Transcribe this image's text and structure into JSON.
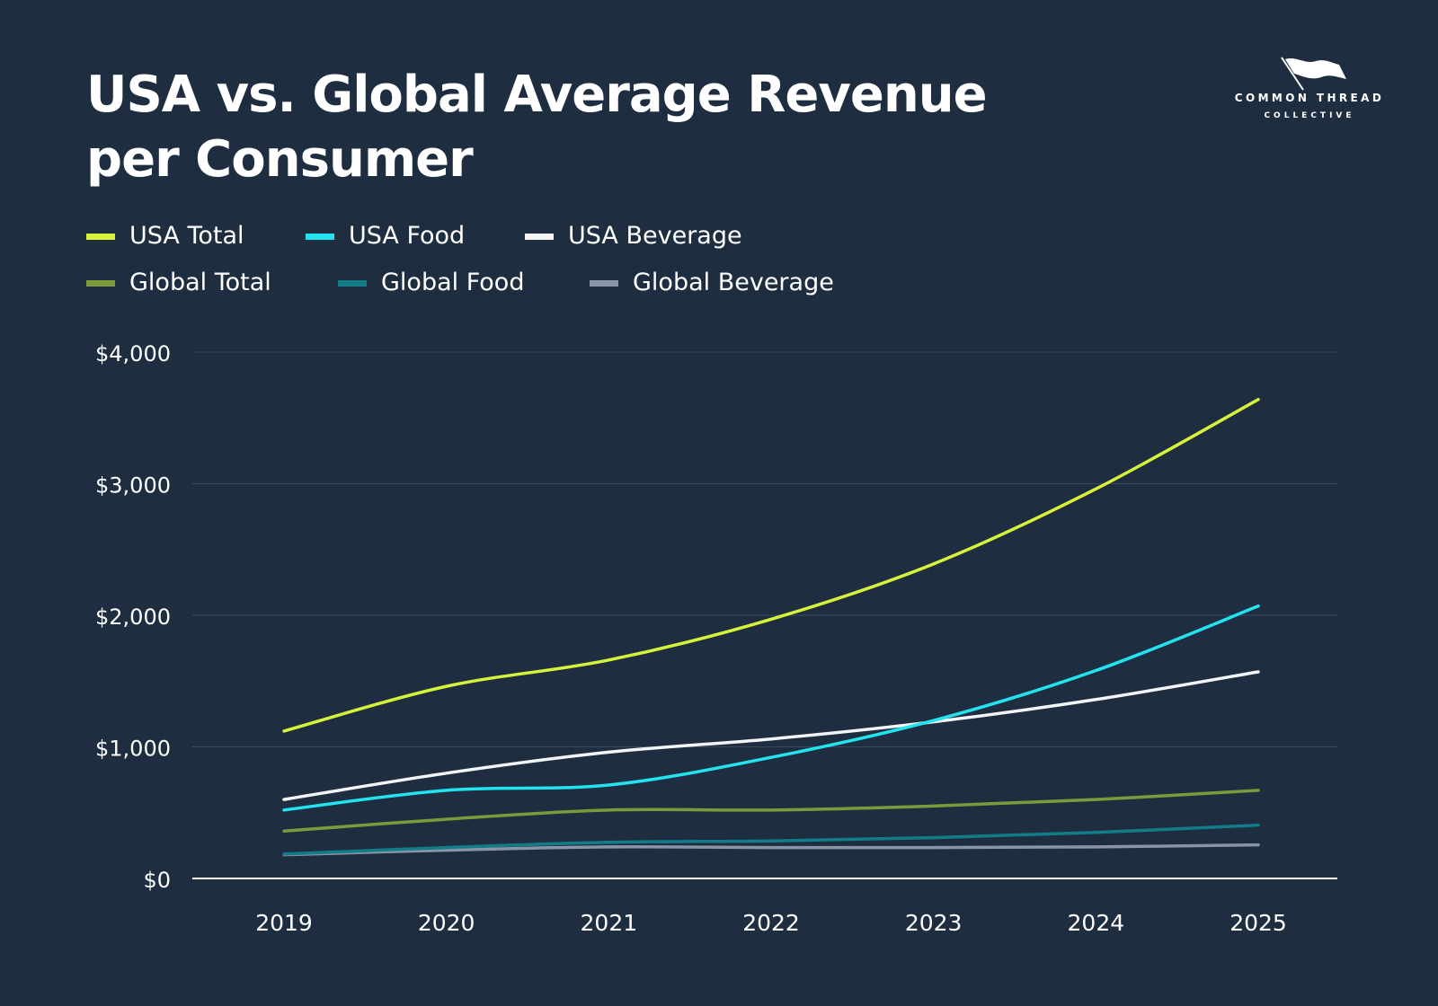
{
  "title_lines": [
    "USA vs. Global Average Revenue",
    "per Consumer"
  ],
  "logo": {
    "line1": "COMMON THREAD",
    "line2": "COLLECTIVE"
  },
  "colors": {
    "background": "#1e2e40",
    "usa_total": "#d7f23a",
    "usa_food": "#22e3ee",
    "usa_beverage": "#f2f4f7",
    "global_total": "#7b9a3c",
    "global_food": "#127d89",
    "global_beverage": "#8995a6"
  },
  "chart_data": {
    "type": "line",
    "title": "USA vs. Global Average Revenue per Consumer",
    "x": [
      "2019",
      "2020",
      "2021",
      "2022",
      "2023",
      "2024",
      "2025"
    ],
    "ylim": [
      0,
      4000
    ],
    "y_ticks": [
      {
        "value": 0,
        "label": "$0"
      },
      {
        "value": 1000,
        "label": "$1,000"
      },
      {
        "value": 2000,
        "label": "$2,000"
      },
      {
        "value": 3000,
        "label": "$3,000"
      },
      {
        "value": 4000,
        "label": "$4,000"
      }
    ],
    "grid": true,
    "legend_position": "top-left",
    "series": [
      {
        "name": "USA Total",
        "color": "#d7f23a",
        "values": [
          1120,
          1460,
          1660,
          1970,
          2390,
          2960,
          3640
        ]
      },
      {
        "name": "USA Food",
        "color": "#22e3ee",
        "values": [
          520,
          670,
          710,
          920,
          1200,
          1580,
          2070
        ]
      },
      {
        "name": "USA Beverage",
        "color": "#f2f4f7",
        "values": [
          600,
          800,
          960,
          1060,
          1190,
          1360,
          1570
        ]
      },
      {
        "name": "Global Total",
        "color": "#7b9a3c",
        "values": [
          360,
          450,
          520,
          520,
          550,
          600,
          670
        ]
      },
      {
        "name": "Global Food",
        "color": "#127d89",
        "values": [
          185,
          235,
          275,
          285,
          310,
          350,
          405
        ]
      },
      {
        "name": "Global Beverage",
        "color": "#8995a6",
        "values": [
          180,
          215,
          240,
          235,
          235,
          240,
          255
        ]
      }
    ]
  }
}
